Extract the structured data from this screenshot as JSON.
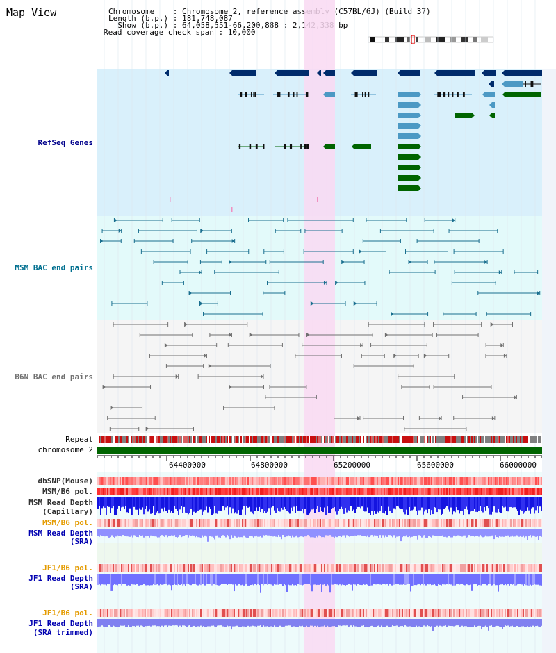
{
  "view": {
    "title": "Map View",
    "chromosome_line": "Chromosome    : Chromosome 2, reference assembly (C57BL/6J) (Build 37)",
    "length_line": "Length (b.p.) : 181,748,087",
    "show_line": "  Show (b.p.) : 64,058,551-66,200,888 : 2,142,338 bp",
    "coverage_line": "Read coverage check span : 10,000"
  },
  "tracks": {
    "refseq": "RefSeq Genes",
    "msm_bac": "MSM BAC end pairs",
    "b6n_bac": "B6N BAC end pairs",
    "repeat": "Repeat",
    "chromosome": "chromosome 2",
    "dbsnp": "dbSNP(Mouse)",
    "msm_b6_pol_1": "MSM/B6 pol.",
    "msm_read_depth_cap_1": "MSM Read Depth",
    "msm_read_depth_cap_2": "(Capillary)",
    "msm_b6_pol_2": "MSM/B6 pol.",
    "msm_read_depth_sra_1": "MSM Read Depth",
    "msm_read_depth_sra_2": "(SRA)",
    "jf1_b6_pol_1": "JF1/B6 pol.",
    "jf1_read_depth_1": "JF1 Read Depth",
    "jf1_read_depth_2": "(SRA)",
    "jf1_b6_pol_2": "JF1/B6 pol.",
    "jf1_read_depth_trim_1": "JF1 Read Depth",
    "jf1_read_depth_trim_2": "(SRA trimmed)"
  },
  "axis": {
    "ticks": [
      "64400000",
      "64800000",
      "65200000",
      "65600000",
      "66000000"
    ]
  },
  "colors": {
    "refseq_bg": "#d9f0fb",
    "msm_bg": "#e3fafa",
    "b6n_bg": "#f5f5f5",
    "highlight": "#f9d9f2",
    "gene_navy": "#002b6b",
    "gene_teal": "#4c99c4",
    "gene_green": "#006400",
    "msm_line": "#1a6f8f",
    "b6n_line": "#707070",
    "chrom_green": "#006400",
    "msm_label": "#006f8f",
    "refseq_label": "#00008b",
    "pol_label": "#e49b00",
    "depth_label": "#0000b0"
  }
}
